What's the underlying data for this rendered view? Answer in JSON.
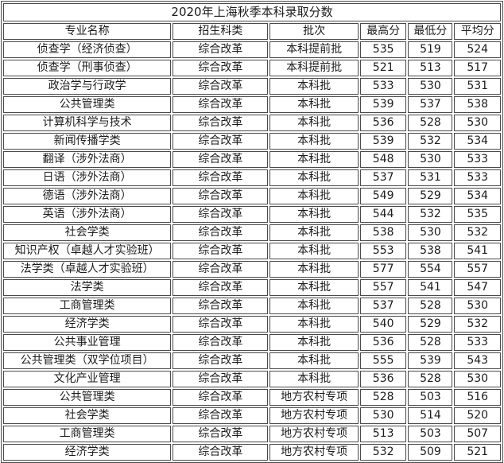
{
  "title": "2020年上海秋季本科录取分数",
  "chart_data": {
    "type": "table",
    "title": "2020年上海秋季本科录取分数",
    "columns": [
      "专业名称",
      "招生科类",
      "批次",
      "最高分",
      "最低分",
      "平均分"
    ],
    "rows": [
      [
        "侦查学（经济侦查）",
        "综合改革",
        "本科提前批",
        "535",
        "519",
        "524"
      ],
      [
        "侦查学（刑事侦查）",
        "综合改革",
        "本科提前批",
        "521",
        "513",
        "517"
      ],
      [
        "政治学与行政学",
        "综合改革",
        "本科批",
        "533",
        "530",
        "531"
      ],
      [
        "公共管理类",
        "综合改革",
        "本科批",
        "539",
        "537",
        "538"
      ],
      [
        "计算机科学与技术",
        "综合改革",
        "本科批",
        "536",
        "528",
        "530"
      ],
      [
        "新闻传播学类",
        "综合改革",
        "本科批",
        "539",
        "532",
        "534"
      ],
      [
        "翻译（涉外法商）",
        "综合改革",
        "本科批",
        "548",
        "530",
        "533"
      ],
      [
        "日语（涉外法商）",
        "综合改革",
        "本科批",
        "537",
        "531",
        "533"
      ],
      [
        "德语（涉外法商）",
        "综合改革",
        "本科批",
        "549",
        "529",
        "534"
      ],
      [
        "英语（涉外法商）",
        "综合改革",
        "本科批",
        "544",
        "532",
        "535"
      ],
      [
        "社会学类",
        "综合改革",
        "本科批",
        "538",
        "530",
        "532"
      ],
      [
        "知识产权（卓越人才实验班）",
        "综合改革",
        "本科批",
        "553",
        "538",
        "541"
      ],
      [
        "法学类（卓越人才实验班）",
        "综合改革",
        "本科批",
        "577",
        "554",
        "557"
      ],
      [
        "法学类",
        "综合改革",
        "本科批",
        "557",
        "541",
        "547"
      ],
      [
        "工商管理类",
        "综合改革",
        "本科批",
        "537",
        "528",
        "530"
      ],
      [
        "经济学类",
        "综合改革",
        "本科批",
        "540",
        "529",
        "532"
      ],
      [
        "公共事业管理",
        "综合改革",
        "本科批",
        "536",
        "528",
        "533"
      ],
      [
        "公共管理类（双学位项目）",
        "综合改革",
        "本科批",
        "555",
        "539",
        "543"
      ],
      [
        "文化产业管理",
        "综合改革",
        "本科批",
        "536",
        "528",
        "530"
      ],
      [
        "公共管理类",
        "综合改革",
        "地方农村专项",
        "528",
        "503",
        "516"
      ],
      [
        "社会学类",
        "综合改革",
        "地方农村专项",
        "530",
        "514",
        "520"
      ],
      [
        "工商管理类",
        "综合改革",
        "地方农村专项",
        "513",
        "503",
        "507"
      ],
      [
        "经济学类",
        "综合改革",
        "地方农村专项",
        "532",
        "509",
        "521"
      ]
    ]
  },
  "colors": {
    "border": "#4a4a4a",
    "text": "#1c1c1c",
    "background": "#ffffff"
  }
}
